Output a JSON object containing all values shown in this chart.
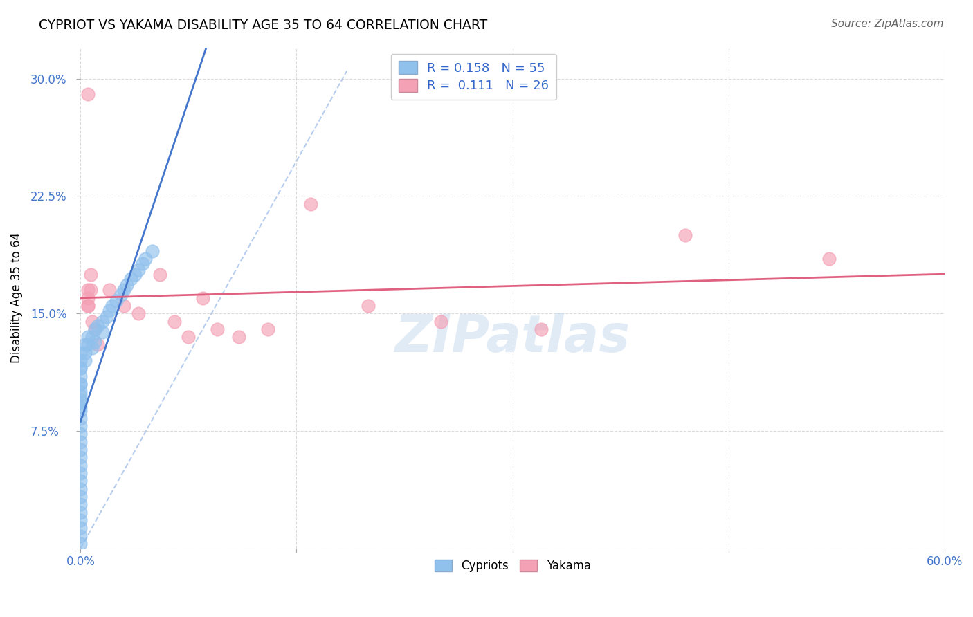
{
  "title": "CYPRIOT VS YAKAMA DISABILITY AGE 35 TO 64 CORRELATION CHART",
  "source": "Source: ZipAtlas.com",
  "ylabel": "Disability Age 35 to 64",
  "xlim": [
    0.0,
    0.6
  ],
  "ylim": [
    0.0,
    0.32
  ],
  "xticks": [
    0.0,
    0.15,
    0.3,
    0.45,
    0.6
  ],
  "xticklabels": [
    "0.0%",
    "",
    "",
    "",
    "60.0%"
  ],
  "yticks": [
    0.0,
    0.075,
    0.15,
    0.225,
    0.3
  ],
  "yticklabels": [
    "",
    "7.5%",
    "15.0%",
    "22.5%",
    "30.0%"
  ],
  "legend_text_blue": "R = 0.158   N = 55",
  "legend_text_pink": "R =  0.111   N = 26",
  "watermark": "ZIPatlas",
  "cypriot_color": "#90C0EC",
  "yakama_color": "#F4A0B5",
  "cypriot_line_color": "#4477CC",
  "yakama_line_color": "#E06080",
  "diagonal_color": "#B0C8EC",
  "cypriot_x": [
    0.0,
    0.0,
    0.0,
    0.0,
    0.0,
    0.0,
    0.0,
    0.0,
    0.0,
    0.0,
    0.0,
    0.0,
    0.0,
    0.0,
    0.0,
    0.0,
    0.0,
    0.0,
    0.0,
    0.0,
    0.0,
    0.0,
    0.0,
    0.0,
    0.0,
    0.0,
    0.0,
    0.0,
    0.0,
    0.0,
    0.003,
    0.003,
    0.003,
    0.005,
    0.005,
    0.008,
    0.008,
    0.01,
    0.01,
    0.012,
    0.015,
    0.015,
    0.018,
    0.02,
    0.022,
    0.025,
    0.028,
    0.03,
    0.032,
    0.035,
    0.038,
    0.04,
    0.043,
    0.045,
    0.05
  ],
  "cypriot_y": [
    0.115,
    0.105,
    0.098,
    0.093,
    0.088,
    0.083,
    0.078,
    0.073,
    0.068,
    0.063,
    0.058,
    0.053,
    0.048,
    0.043,
    0.038,
    0.033,
    0.028,
    0.023,
    0.018,
    0.013,
    0.008,
    0.003,
    0.125,
    0.12,
    0.115,
    0.11,
    0.105,
    0.1,
    0.095,
    0.09,
    0.13,
    0.125,
    0.12,
    0.135,
    0.13,
    0.135,
    0.128,
    0.14,
    0.132,
    0.142,
    0.145,
    0.138,
    0.148,
    0.152,
    0.155,
    0.158,
    0.162,
    0.165,
    0.168,
    0.172,
    0.175,
    0.178,
    0.182,
    0.185,
    0.19
  ],
  "yakama_x": [
    0.005,
    0.005,
    0.005,
    0.005,
    0.007,
    0.007,
    0.02,
    0.03,
    0.04,
    0.055,
    0.065,
    0.075,
    0.085,
    0.095,
    0.11,
    0.13,
    0.16,
    0.2,
    0.25,
    0.32,
    0.42,
    0.52,
    0.005,
    0.008,
    0.01,
    0.012
  ],
  "yakama_y": [
    0.29,
    0.165,
    0.16,
    0.155,
    0.175,
    0.165,
    0.165,
    0.155,
    0.15,
    0.175,
    0.145,
    0.135,
    0.16,
    0.14,
    0.135,
    0.14,
    0.22,
    0.155,
    0.145,
    0.14,
    0.2,
    0.185,
    0.155,
    0.145,
    0.14,
    0.13
  ]
}
